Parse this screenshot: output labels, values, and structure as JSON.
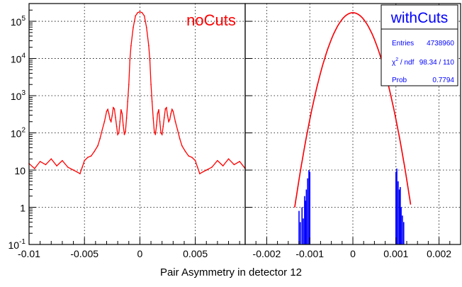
{
  "xlabel": "Pair Asymmetry in detector 12",
  "colors": {
    "red": "#ff0000",
    "blue": "#0000ff",
    "black": "#000000",
    "grid": "#000000"
  },
  "chart_data": [
    {
      "type": "line",
      "title": "noCuts",
      "xlim": [
        -0.01,
        0.0095
      ],
      "ylim": [
        0.1,
        300000
      ],
      "yscale": "log",
      "grid": true,
      "xticks": [
        -0.01,
        -0.005,
        0,
        0.005
      ],
      "xtick_labels": [
        "-0.01",
        "-0.005",
        "0",
        "0.005"
      ],
      "ytick_labels": [
        {
          "base": "10",
          "exp": "-1"
        },
        {
          "base": "1",
          "exp": ""
        },
        {
          "base": "10",
          "exp": ""
        },
        {
          "base": "10",
          "exp": "2"
        },
        {
          "base": "10",
          "exp": "3"
        },
        {
          "base": "10",
          "exp": "4"
        },
        {
          "base": "10",
          "exp": "5"
        }
      ],
      "series": [
        {
          "color": "#ff0000",
          "x": [
            -0.01,
            -0.0095,
            -0.009,
            -0.0085,
            -0.008,
            -0.0075,
            -0.007,
            -0.0065,
            -0.006,
            -0.0057,
            -0.0054,
            -0.0052,
            -0.005,
            -0.0047,
            -0.0044,
            -0.0041,
            -0.0038,
            -0.0036,
            -0.0034,
            -0.0032,
            -0.003,
            -0.0029,
            -0.0028,
            -0.0027,
            -0.0026,
            -0.0025,
            -0.0024,
            -0.0023,
            -0.0022,
            -0.0021,
            -0.002,
            -0.0019,
            -0.0018,
            -0.0017,
            -0.0016,
            -0.0015,
            -0.0014,
            -0.0013,
            -0.0012,
            -0.0011,
            -0.001,
            -0.0009,
            -0.0008,
            -0.0006,
            -0.0004,
            -0.0002,
            0,
            0.0002,
            0.0004,
            0.0006,
            0.0008,
            0.0009,
            0.001,
            0.0011,
            0.0012,
            0.0013,
            0.0014,
            0.0015,
            0.0016,
            0.0017,
            0.0018,
            0.0019,
            0.002,
            0.0021,
            0.0022,
            0.0023,
            0.0024,
            0.0025,
            0.0026,
            0.0027,
            0.0028,
            0.0029,
            0.003,
            0.0032,
            0.0034,
            0.0036,
            0.0038,
            0.0041,
            0.0044,
            0.0047,
            0.005,
            0.0052,
            0.0054,
            0.0057,
            0.006,
            0.0065,
            0.007,
            0.0075,
            0.008,
            0.0085,
            0.009,
            0.0095
          ],
          "y": [
            15,
            11,
            17,
            14,
            20,
            13,
            18,
            12,
            10,
            9,
            8,
            12,
            18,
            22,
            24,
            32,
            45,
            70,
            120,
            200,
            380,
            430,
            330,
            230,
            200,
            290,
            480,
            440,
            260,
            150,
            90,
            100,
            200,
            420,
            330,
            160,
            90,
            110,
            250,
            700,
            2000,
            9000,
            22000,
            68000,
            140000,
            170000,
            180000,
            170000,
            140000,
            68000,
            22000,
            9000,
            2000,
            700,
            250,
            110,
            90,
            160,
            330,
            420,
            200,
            100,
            90,
            150,
            260,
            440,
            480,
            290,
            200,
            230,
            330,
            430,
            380,
            200,
            120,
            70,
            45,
            32,
            24,
            22,
            18,
            12,
            8,
            9,
            10,
            12,
            18,
            13,
            20,
            14,
            17,
            11
          ]
        }
      ]
    },
    {
      "type": "line",
      "title": "withCuts",
      "xlim": [
        -0.0025,
        0.0025
      ],
      "ylim": [
        0.1,
        300000
      ],
      "yscale": "log",
      "grid": true,
      "xticks": [
        -0.002,
        -0.001,
        0,
        0.001,
        0.002
      ],
      "xtick_labels": [
        "-0.002",
        "-0.001",
        "0",
        "0.001",
        "0.002"
      ],
      "stats": [
        {
          "label": "Entries",
          "value": "4738960"
        },
        {
          "label_main": "χ",
          "label_sup": "2",
          "label_rest": " / ndf",
          "value": "98.34 / 110"
        },
        {
          "label": "Prob",
          "value": "0.7794"
        }
      ],
      "series": [
        {
          "name": "fit",
          "color": "#ff0000",
          "model": "gaussian",
          "amplitude": 170000,
          "mean": 0,
          "sigma": 0.000275
        },
        {
          "name": "data",
          "color": "#0000ff",
          "x": [
            -0.00125,
            -0.00122,
            -0.00118,
            -0.00115,
            -0.00112,
            -0.0011,
            -0.00108,
            -0.00105,
            -0.00102,
            -0.001,
            0.001,
            0.00102,
            0.00105,
            0.00108,
            0.0011,
            0.00112,
            0.00115,
            0.00118
          ],
          "y": [
            0.8,
            0.4,
            1.0,
            0.5,
            2.0,
            1.5,
            3.0,
            6.0,
            10.0,
            9.0,
            9.0,
            11.0,
            5.0,
            3.0,
            3.5,
            1.0,
            0.6,
            0.4
          ]
        }
      ]
    }
  ]
}
